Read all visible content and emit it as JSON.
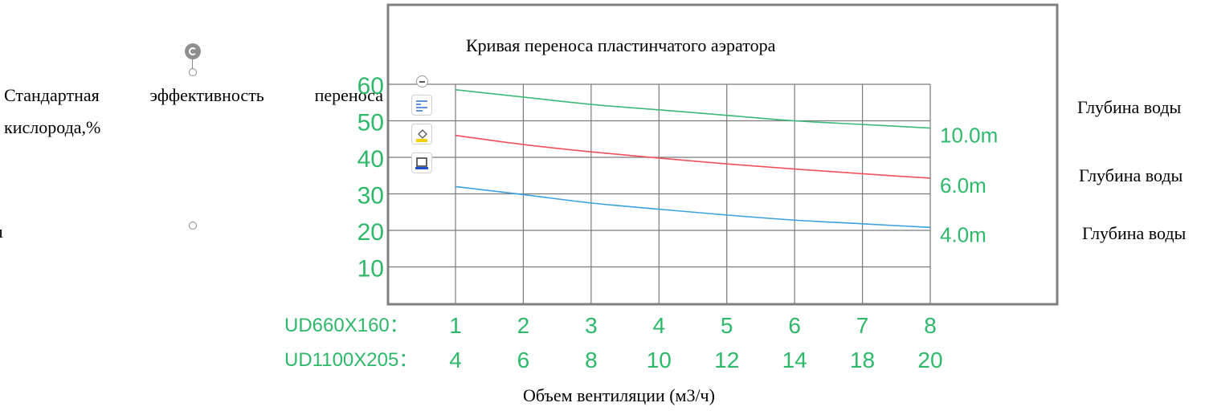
{
  "page": {
    "ylabel_words": [
      "Стандартная",
      "эффективность",
      "переноса"
    ],
    "ylabel_line2": "кислорода,%",
    "left_fragment": "ı",
    "depth_labels": [
      "Глубина воды",
      "Глубина воды",
      "Глубина воды"
    ],
    "xlabel": "Объем вентиляции (м3/ч)"
  },
  "chart_data": {
    "type": "line",
    "title": "Кривая переноса пластинчатого аэратора",
    "ylim": [
      0,
      60
    ],
    "yticks": [
      "10",
      "20",
      "30",
      "40",
      "50",
      "60"
    ],
    "xlim": [
      1,
      8
    ],
    "x": [
      1,
      2,
      3,
      4,
      5,
      6,
      7,
      8
    ],
    "xtick_rows": [
      {
        "label": "UD660X160：",
        "ticks": [
          "1",
          "2",
          "3",
          "4",
          "5",
          "6",
          "7",
          "8"
        ]
      },
      {
        "label": "UD1100X205：",
        "ticks": [
          "4",
          "6",
          "8",
          "10",
          "12",
          "14",
          "18",
          "20"
        ]
      }
    ],
    "grid": true,
    "series": [
      {
        "name": "10.0m",
        "color": "#3cb878",
        "values": [
          58.5,
          56.5,
          54.5,
          53,
          51.5,
          50,
          49,
          48
        ]
      },
      {
        "name": "6.0m",
        "color": "#f0505a",
        "values": [
          46,
          43.5,
          41.5,
          39.8,
          38.2,
          36.8,
          35.5,
          34.3
        ]
      },
      {
        "name": "4.0m",
        "color": "#3aa0e0",
        "values": [
          32,
          29.8,
          27.5,
          25.8,
          24.2,
          22.8,
          21.8,
          20.8
        ]
      }
    ],
    "label_color": "#2db86a",
    "line_color": "#000000"
  },
  "icons": [
    "rotate-handle-icon",
    "collapse-icon",
    "layout-options-icon",
    "fill-icon",
    "frame-icon"
  ]
}
